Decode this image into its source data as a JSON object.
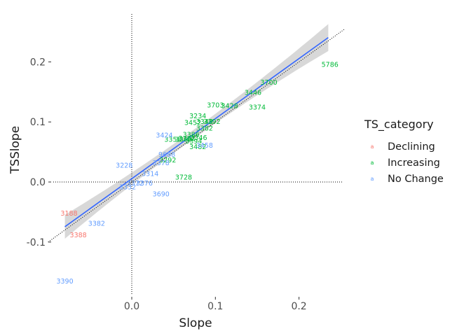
{
  "chart_data": {
    "type": "scatter",
    "title": "",
    "xlabel": "Slope",
    "ylabel": "TSSlope",
    "xlim": [
      -0.1,
      0.25
    ],
    "ylim": [
      -0.19,
      0.27
    ],
    "xticks": [
      0.0,
      0.1,
      0.2
    ],
    "xtick_labels": [
      "0.0",
      "0.1",
      "0.2"
    ],
    "yticks": [
      -0.1,
      0.0,
      0.1,
      0.2
    ],
    "ytick_labels": [
      "-0.1",
      "0.0",
      "0.1",
      "0.2"
    ],
    "grid": false,
    "reference_lines": {
      "vertical_x": 0,
      "horizontal_y": 0,
      "diagonal_identity": true,
      "style": "dotted",
      "color": "#000000"
    },
    "fit_line": {
      "type": "linear",
      "intercept": 0.0055,
      "slope": 1.0,
      "x_range": [
        -0.08,
        0.235
      ],
      "color": "#3366ff",
      "confidence_band": true,
      "band_color": "#bebebe"
    },
    "legend": {
      "title": "TS_category",
      "position": "right",
      "key_glyph": "a",
      "entries": [
        {
          "name": "Declining",
          "color": "#f8766d"
        },
        {
          "name": "Increasing",
          "color": "#00ba38"
        },
        {
          "name": "No Change",
          "color": "#619cff"
        }
      ]
    },
    "series": [
      {
        "name": "Declining",
        "color": "#f8766d",
        "points": [
          {
            "label": "3188",
            "x": -0.075,
            "y": -0.052
          },
          {
            "label": "3388",
            "x": -0.064,
            "y": -0.088
          }
        ]
      },
      {
        "name": "Increasing",
        "color": "#00ba38",
        "points": [
          {
            "label": "5786",
            "x": 0.237,
            "y": 0.196
          },
          {
            "label": "3700",
            "x": 0.164,
            "y": 0.166
          },
          {
            "label": "3446",
            "x": 0.145,
            "y": 0.149
          },
          {
            "label": "3374",
            "x": 0.15,
            "y": 0.125
          },
          {
            "label": "3703",
            "x": 0.1,
            "y": 0.128
          },
          {
            "label": "3428",
            "x": 0.117,
            "y": 0.127
          },
          {
            "label": "3234",
            "x": 0.079,
            "y": 0.11
          },
          {
            "label": "3452",
            "x": 0.073,
            "y": 0.099
          },
          {
            "label": "3348",
            "x": 0.087,
            "y": 0.101
          },
          {
            "label": "3392",
            "x": 0.096,
            "y": 0.101
          },
          {
            "label": "3382",
            "x": 0.087,
            "y": 0.09
          },
          {
            "label": "3386",
            "x": 0.071,
            "y": 0.079
          },
          {
            "label": "3362",
            "x": 0.066,
            "y": 0.073
          },
          {
            "label": "3346",
            "x": 0.08,
            "y": 0.074
          },
          {
            "label": "3358",
            "x": 0.049,
            "y": 0.071
          },
          {
            "label": "3368",
            "x": 0.062,
            "y": 0.071
          },
          {
            "label": "3394",
            "x": 0.074,
            "y": 0.068
          },
          {
            "label": "3482",
            "x": 0.079,
            "y": 0.059
          },
          {
            "label": "3292",
            "x": 0.043,
            "y": 0.037
          },
          {
            "label": "3728",
            "x": 0.062,
            "y": 0.008
          }
        ]
      },
      {
        "name": "No Change",
        "color": "#619cff",
        "points": [
          {
            "label": "3424",
            "x": 0.039,
            "y": 0.078
          },
          {
            "label": "3458",
            "x": 0.087,
            "y": 0.061
          },
          {
            "label": "9688",
            "x": 0.042,
            "y": 0.046
          },
          {
            "label": "3378",
            "x": 0.035,
            "y": 0.032
          },
          {
            "label": "3228",
            "x": -0.009,
            "y": 0.028
          },
          {
            "label": "3314",
            "x": 0.022,
            "y": 0.014
          },
          {
            "label": "3372",
            "x": 0.004,
            "y": -0.002
          },
          {
            "label": "3376",
            "x": 0.015,
            "y": -0.002
          },
          {
            "label": "3332",
            "x": -0.005,
            "y": -0.008
          },
          {
            "label": "3690",
            "x": 0.035,
            "y": -0.02
          },
          {
            "label": "3382",
            "x": -0.042,
            "y": -0.069
          },
          {
            "label": "3390",
            "x": -0.08,
            "y": -0.165
          }
        ]
      }
    ]
  }
}
